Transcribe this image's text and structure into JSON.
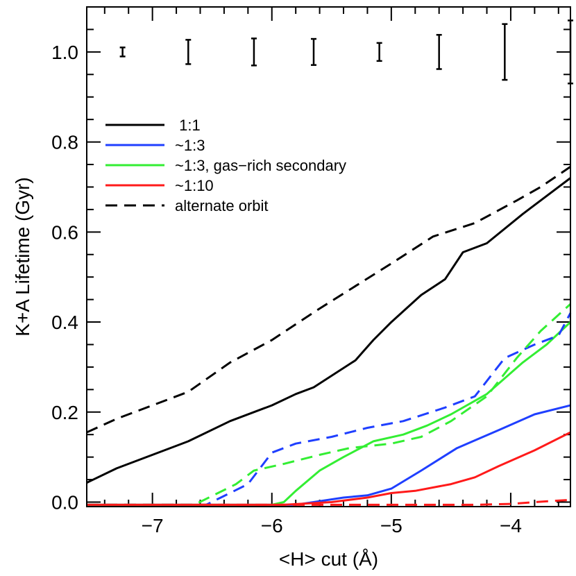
{
  "chart_data": {
    "type": "line",
    "title": "",
    "xlabel": "<H> cut (Å)",
    "ylabel": "K+A Lifetime (Gyr)",
    "xlim": [
      -7.55,
      -3.5
    ],
    "ylim": [
      -0.01,
      1.1
    ],
    "xticks": [
      {
        "value": -7,
        "label": "−7"
      },
      {
        "value": -6,
        "label": "−6"
      },
      {
        "value": -5,
        "label": "−5"
      },
      {
        "value": -4,
        "label": "−4"
      }
    ],
    "yticks": [
      {
        "value": 0.0,
        "label": "0.0"
      },
      {
        "value": 0.2,
        "label": "0.2"
      },
      {
        "value": 0.4,
        "label": "0.4"
      },
      {
        "value": 0.6,
        "label": "0.6"
      },
      {
        "value": 0.8,
        "label": "0.8"
      },
      {
        "value": 1.0,
        "label": "1.0"
      }
    ],
    "legend": {
      "placement": "upper-left",
      "entries": [
        {
          "label": " 1:1",
          "color": "#000000",
          "dash": "solid"
        },
        {
          "label": "~1:3",
          "color": "#1f3fff",
          "dash": "solid"
        },
        {
          "label": "~1:3, gas−rich secondary",
          "color": "#33ee33",
          "dash": "solid"
        },
        {
          "label": "~1:10",
          "color": "#ff1a1a",
          "dash": "solid"
        },
        {
          "label": "alternate orbit",
          "color": "#000000",
          "dash": "dashed"
        }
      ]
    },
    "series": [
      {
        "color": "#000000",
        "dash": "solid",
        "points": [
          [
            -7.55,
            0.043
          ],
          [
            -7.3,
            0.075
          ],
          [
            -7.0,
            0.105
          ],
          [
            -6.7,
            0.135
          ],
          [
            -6.35,
            0.18
          ],
          [
            -6.0,
            0.215
          ],
          [
            -5.8,
            0.24
          ],
          [
            -5.65,
            0.255
          ],
          [
            -5.3,
            0.315
          ],
          [
            -5.15,
            0.36
          ],
          [
            -5.0,
            0.4
          ],
          [
            -4.75,
            0.46
          ],
          [
            -4.55,
            0.495
          ],
          [
            -4.4,
            0.555
          ],
          [
            -4.2,
            0.575
          ],
          [
            -3.9,
            0.64
          ],
          [
            -3.7,
            0.68
          ],
          [
            -3.5,
            0.72
          ]
        ]
      },
      {
        "color": "#1f3fff",
        "dash": "solid",
        "points": [
          [
            -7.55,
            -0.006
          ],
          [
            -5.8,
            -0.006
          ],
          [
            -5.65,
            0.0
          ],
          [
            -5.4,
            0.01
          ],
          [
            -5.2,
            0.015
          ],
          [
            -5.0,
            0.03
          ],
          [
            -4.75,
            0.07
          ],
          [
            -4.45,
            0.12
          ],
          [
            -4.1,
            0.16
          ],
          [
            -3.8,
            0.195
          ],
          [
            -3.5,
            0.215
          ]
        ]
      },
      {
        "color": "#33ee33",
        "dash": "solid",
        "points": [
          [
            -7.55,
            -0.006
          ],
          [
            -6.0,
            -0.006
          ],
          [
            -5.9,
            0.0
          ],
          [
            -5.8,
            0.025
          ],
          [
            -5.6,
            0.07
          ],
          [
            -5.4,
            0.1
          ],
          [
            -5.15,
            0.135
          ],
          [
            -4.9,
            0.15
          ],
          [
            -4.7,
            0.17
          ],
          [
            -4.5,
            0.195
          ],
          [
            -4.2,
            0.24
          ],
          [
            -3.9,
            0.31
          ],
          [
            -3.7,
            0.35
          ],
          [
            -3.5,
            0.4
          ]
        ]
      },
      {
        "color": "#ff1a1a",
        "dash": "solid",
        "points": [
          [
            -7.55,
            -0.006
          ],
          [
            -5.9,
            -0.006
          ],
          [
            -5.5,
            0.0
          ],
          [
            -5.2,
            0.01
          ],
          [
            -5.0,
            0.02
          ],
          [
            -4.8,
            0.025
          ],
          [
            -4.5,
            0.04
          ],
          [
            -4.3,
            0.055
          ],
          [
            -4.1,
            0.08
          ],
          [
            -3.8,
            0.115
          ],
          [
            -3.5,
            0.155
          ]
        ]
      },
      {
        "color": "#000000",
        "dash": "dashed",
        "points": [
          [
            -7.55,
            0.155
          ],
          [
            -7.3,
            0.185
          ],
          [
            -7.0,
            0.215
          ],
          [
            -6.7,
            0.245
          ],
          [
            -6.35,
            0.31
          ],
          [
            -6.0,
            0.36
          ],
          [
            -5.6,
            0.43
          ],
          [
            -5.3,
            0.48
          ],
          [
            -5.0,
            0.53
          ],
          [
            -4.65,
            0.59
          ],
          [
            -4.3,
            0.62
          ],
          [
            -3.95,
            0.67
          ],
          [
            -3.75,
            0.7
          ],
          [
            -3.5,
            0.745
          ]
        ]
      },
      {
        "color": "#1f3fff",
        "dash": "dashed",
        "points": [
          [
            -7.55,
            -0.006
          ],
          [
            -6.55,
            -0.006
          ],
          [
            -6.2,
            0.04
          ],
          [
            -6.0,
            0.11
          ],
          [
            -5.8,
            0.13
          ],
          [
            -5.5,
            0.145
          ],
          [
            -5.2,
            0.165
          ],
          [
            -4.9,
            0.18
          ],
          [
            -4.55,
            0.21
          ],
          [
            -4.3,
            0.235
          ],
          [
            -4.05,
            0.32
          ],
          [
            -3.8,
            0.35
          ],
          [
            -3.6,
            0.37
          ],
          [
            -3.5,
            0.42
          ]
        ]
      },
      {
        "color": "#33ee33",
        "dash": "dashed",
        "points": [
          [
            -7.55,
            -0.006
          ],
          [
            -6.65,
            -0.006
          ],
          [
            -6.3,
            0.04
          ],
          [
            -6.15,
            0.07
          ],
          [
            -5.9,
            0.085
          ],
          [
            -5.6,
            0.105
          ],
          [
            -5.35,
            0.12
          ],
          [
            -5.0,
            0.13
          ],
          [
            -4.75,
            0.145
          ],
          [
            -4.5,
            0.18
          ],
          [
            -4.2,
            0.235
          ],
          [
            -3.95,
            0.32
          ],
          [
            -3.75,
            0.38
          ],
          [
            -3.5,
            0.44
          ]
        ]
      },
      {
        "color": "#ff1a1a",
        "dash": "dashed",
        "points": [
          [
            -7.55,
            -0.006
          ],
          [
            -4.3,
            -0.006
          ],
          [
            -4.0,
            -0.004
          ],
          [
            -3.8,
            0.0
          ],
          [
            -3.5,
            0.005
          ]
        ]
      }
    ],
    "error_bars": [
      {
        "x": -7.25,
        "low": 0.99,
        "high": 1.01
      },
      {
        "x": -6.7,
        "low": 0.973,
        "high": 1.027
      },
      {
        "x": -6.15,
        "low": 0.97,
        "high": 1.03
      },
      {
        "x": -5.65,
        "low": 0.971,
        "high": 1.029
      },
      {
        "x": -5.1,
        "low": 0.98,
        "high": 1.02
      },
      {
        "x": -4.6,
        "low": 0.962,
        "high": 1.038
      },
      {
        "x": -4.05,
        "low": 0.938,
        "high": 1.062
      },
      {
        "x": -3.5,
        "low": 0.93,
        "high": 1.07
      }
    ]
  }
}
